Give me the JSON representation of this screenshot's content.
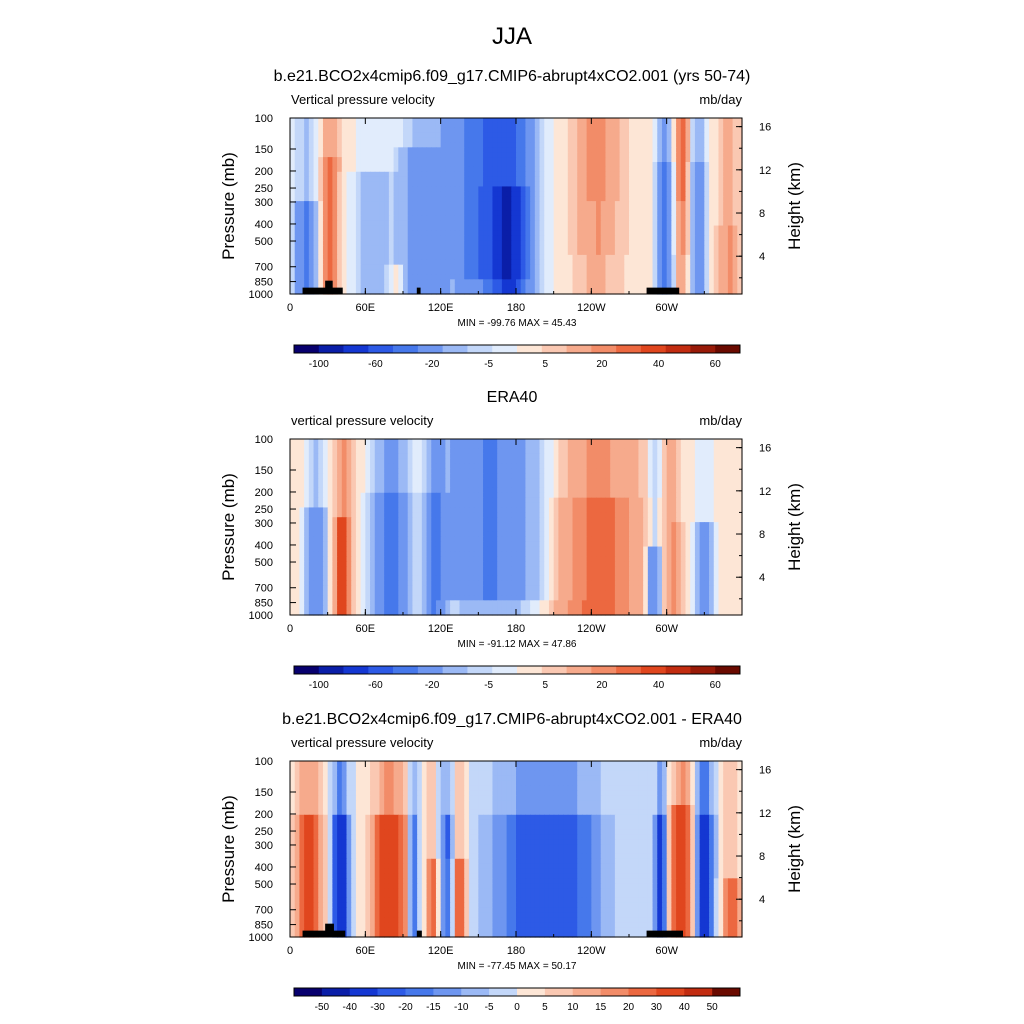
{
  "figure": {
    "title": "JJA"
  },
  "chart_data": [
    {
      "type": "heatmap",
      "title": "b.e21.BCO2x4cmip6.f09_g17.CMIP6-abrupt4xCO2.001 (yrs 50-74)",
      "left_label": "Vertical pressure velocity",
      "units_label": "mb/day",
      "ylabel": "Pressure (mb)",
      "y2label": "Height (km)",
      "x_ticks": [
        "0",
        "60E",
        "120E",
        "180",
        "120W",
        "60W"
      ],
      "x_tick_lons": [
        0,
        60,
        120,
        180,
        240,
        300
      ],
      "xlim": [
        0,
        360
      ],
      "y_ticks": [
        "100",
        "150",
        "200",
        "250",
        "300",
        "400",
        "500",
        "700",
        "850",
        "1000"
      ],
      "y_tick_values": [
        100,
        150,
        200,
        250,
        300,
        400,
        500,
        700,
        850,
        1000
      ],
      "ylim": [
        1000,
        100
      ],
      "y_scale": "log",
      "y2_ticks": [
        "4",
        "8",
        "12",
        "16"
      ],
      "y2_tick_values": [
        4,
        8,
        12,
        16
      ],
      "stats": "MIN = -99.76  MAX =  45.43",
      "min": -99.76,
      "max": 45.43,
      "colorbar_labels": [
        "-100",
        "-60",
        "-20",
        "-5",
        "5",
        "20",
        "40",
        "60"
      ],
      "contour_levels": [
        -120,
        -100,
        -80,
        -60,
        -40,
        -20,
        -10,
        -5,
        0,
        5,
        10,
        20,
        30,
        40,
        50,
        60
      ],
      "colors": [
        "#08006e",
        "#0a1ea8",
        "#1437d2",
        "#2d5ae6",
        "#4678eb",
        "#6e96f0",
        "#9bb9f5",
        "#c3d7f9",
        "#e1ecfc",
        "#fde6d6",
        "#fac8b2",
        "#f6aa8c",
        "#f28c68",
        "#ec6840",
        "#e0461e",
        "#c22c10",
        "#981a08",
        "#6a0a00"
      ],
      "topography": [
        {
          "lon_start": 10,
          "lon_end": 42,
          "top_mb": 920
        },
        {
          "lon_start": 28,
          "lon_end": 34,
          "top_mb": 840
        },
        {
          "lon_start": 101,
          "lon_end": 104,
          "top_mb": 920
        },
        {
          "lon_start": 284,
          "lon_end": 310,
          "top_mb": 920
        }
      ]
    },
    {
      "type": "heatmap",
      "title": "ERA40",
      "left_label": "vertical pressure velocity",
      "units_label": "mb/day",
      "ylabel": "Pressure (mb)",
      "y2label": "Height (km)",
      "x_ticks": [
        "0",
        "60E",
        "120E",
        "180",
        "120W",
        "60W"
      ],
      "x_tick_lons": [
        0,
        60,
        120,
        180,
        240,
        300
      ],
      "xlim": [
        0,
        360
      ],
      "y_ticks": [
        "100",
        "150",
        "200",
        "250",
        "300",
        "400",
        "500",
        "700",
        "850",
        "1000"
      ],
      "y_tick_values": [
        100,
        150,
        200,
        250,
        300,
        400,
        500,
        700,
        850,
        1000
      ],
      "ylim": [
        1000,
        100
      ],
      "y_scale": "log",
      "y2_ticks": [
        "4",
        "8",
        "12",
        "16"
      ],
      "y2_tick_values": [
        4,
        8,
        12,
        16
      ],
      "stats": "MIN = -91.12  MAX =  47.86",
      "min": -91.12,
      "max": 47.86,
      "colorbar_labels": [
        "-100",
        "-60",
        "-20",
        "-5",
        "5",
        "20",
        "40",
        "60"
      ],
      "contour_levels": [
        -120,
        -100,
        -80,
        -60,
        -40,
        -20,
        -10,
        -5,
        0,
        5,
        10,
        20,
        30,
        40,
        50,
        60
      ],
      "colors": [
        "#08006e",
        "#0a1ea8",
        "#1437d2",
        "#2d5ae6",
        "#4678eb",
        "#6e96f0",
        "#9bb9f5",
        "#c3d7f9",
        "#e1ecfc",
        "#fde6d6",
        "#fac8b2",
        "#f6aa8c",
        "#f28c68",
        "#ec6840",
        "#e0461e",
        "#c22c10",
        "#981a08",
        "#6a0a00"
      ],
      "topography": []
    },
    {
      "type": "heatmap",
      "title": "b.e21.BCO2x4cmip6.f09_g17.CMIP6-abrupt4xCO2.001 - ERA40",
      "left_label": "vertical pressure velocity",
      "units_label": "mb/day",
      "ylabel": "Pressure (mb)",
      "y2label": "Height (km)",
      "x_ticks": [
        "0",
        "60E",
        "120E",
        "180",
        "120W",
        "60W"
      ],
      "x_tick_lons": [
        0,
        60,
        120,
        180,
        240,
        300
      ],
      "xlim": [
        0,
        360
      ],
      "y_ticks": [
        "100",
        "150",
        "200",
        "250",
        "300",
        "400",
        "500",
        "700",
        "850",
        "1000"
      ],
      "y_tick_values": [
        100,
        150,
        200,
        250,
        300,
        400,
        500,
        700,
        850,
        1000
      ],
      "ylim": [
        1000,
        100
      ],
      "y_scale": "log",
      "y2_ticks": [
        "4",
        "8",
        "12",
        "16"
      ],
      "y2_tick_values": [
        4,
        8,
        12,
        16
      ],
      "stats": "MIN = -77.45  MAX =  50.17",
      "min": -77.45,
      "max": 50.17,
      "colorbar_labels": [
        "-50",
        "-40",
        "-30",
        "-20",
        "-15",
        "-10",
        "-5",
        "0",
        "5",
        "10",
        "15",
        "20",
        "30",
        "40",
        "50"
      ],
      "contour_levels": [
        -50,
        -40,
        -30,
        -20,
        -15,
        -10,
        -5,
        0,
        5,
        10,
        15,
        20,
        30,
        40,
        50
      ],
      "colors": [
        "#08006e",
        "#0a1ea8",
        "#1437d2",
        "#2d5ae6",
        "#4678eb",
        "#6e96f0",
        "#9bb9f5",
        "#c3d7f9",
        "#fde6d6",
        "#fac8b2",
        "#f6aa8c",
        "#f28c68",
        "#ec6840",
        "#e0461e",
        "#c22c10",
        "#6a0a00"
      ],
      "topography": [
        {
          "lon_start": 10,
          "lon_end": 44,
          "top_mb": 920
        },
        {
          "lon_start": 28,
          "lon_end": 35,
          "top_mb": 840
        },
        {
          "lon_start": 101,
          "lon_end": 105,
          "top_mb": 920
        },
        {
          "lon_start": 284,
          "lon_end": 313,
          "top_mb": 920
        }
      ]
    }
  ]
}
